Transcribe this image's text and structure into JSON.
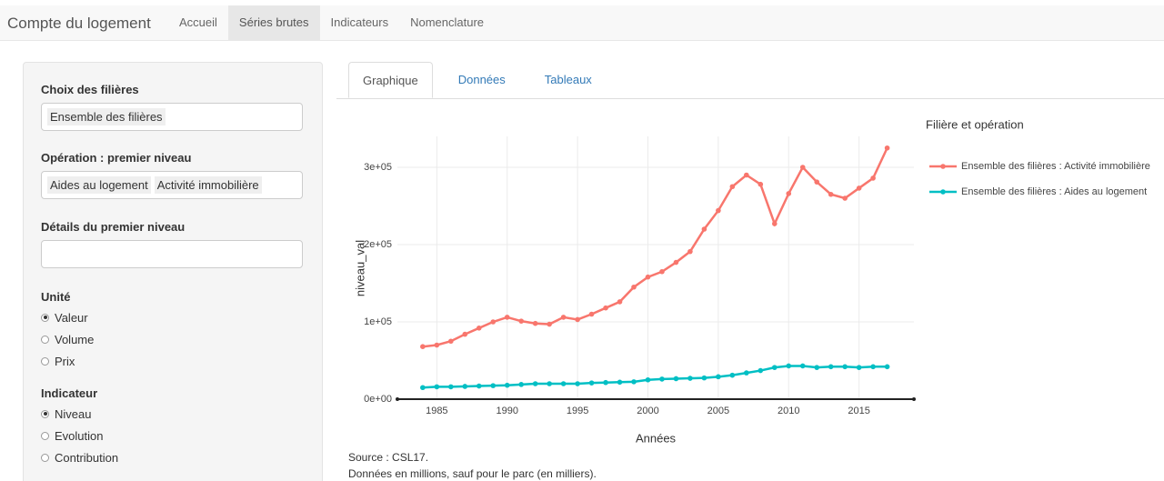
{
  "nav": {
    "brand": "Compte du logement",
    "items": [
      "Accueil",
      "Séries brutes",
      "Indicateurs",
      "Nomenclature"
    ],
    "active": 1
  },
  "sidebar": {
    "filieres": {
      "label": "Choix des filières",
      "selected": [
        "Ensemble des filières"
      ]
    },
    "operation": {
      "label": "Opération : premier niveau",
      "selected": [
        "Aides au logement",
        "Activité immobilière"
      ]
    },
    "details": {
      "label": "Détails du premier niveau"
    },
    "unite": {
      "label": "Unité",
      "options": [
        "Valeur",
        "Volume",
        "Prix"
      ],
      "checked": 0
    },
    "indicateur": {
      "label": "Indicateur",
      "options": [
        "Niveau",
        "Evolution",
        "Contribution"
      ],
      "checked": 0
    }
  },
  "tabs": {
    "items": [
      "Graphique",
      "Données",
      "Tableaux"
    ],
    "active": 0
  },
  "chart_data": {
    "type": "line",
    "x": [
      1984,
      1985,
      1986,
      1987,
      1988,
      1989,
      1990,
      1991,
      1992,
      1993,
      1994,
      1995,
      1996,
      1997,
      1998,
      1999,
      2000,
      2001,
      2002,
      2003,
      2004,
      2005,
      2006,
      2007,
      2008,
      2009,
      2010,
      2011,
      2012,
      2013,
      2014,
      2015,
      2016,
      2017
    ],
    "series": [
      {
        "name": "Ensemble des filières : Activité immobilière",
        "color": "#f8766d",
        "values": [
          68000,
          70000,
          75000,
          84000,
          92000,
          100000,
          106000,
          101000,
          98000,
          97000,
          106000,
          103000,
          110000,
          118000,
          126000,
          145000,
          158000,
          165000,
          177000,
          191000,
          220000,
          244000,
          275000,
          290000,
          278000,
          227000,
          266000,
          300000,
          281000,
          265000,
          260000,
          273000,
          286000,
          325000
        ]
      },
      {
        "name": "Ensemble des filières : Aides au logement",
        "color": "#00bfc4",
        "values": [
          15000,
          16000,
          16000,
          16500,
          17000,
          17500,
          18000,
          19000,
          20000,
          20000,
          20000,
          20000,
          21000,
          21500,
          22000,
          22500,
          25000,
          26000,
          26500,
          27000,
          27500,
          29000,
          31000,
          34000,
          37000,
          41000,
          43000,
          43000,
          41000,
          42000,
          42000,
          41000,
          42000,
          42000
        ]
      }
    ],
    "xlim": [
      1982.2,
      2018.9
    ],
    "ylim": [
      0,
      340000
    ],
    "xticks": [
      1985,
      1990,
      1995,
      2000,
      2005,
      2010,
      2015
    ],
    "yticks": [
      {
        "value": 0,
        "label": "0e+00"
      },
      {
        "value": 100000,
        "label": "1e+05"
      },
      {
        "value": 200000,
        "label": "2e+05"
      },
      {
        "value": 300000,
        "label": "3e+05"
      }
    ],
    "x_label": "Années",
    "y_label": "niveau_val",
    "legend_title": "Filière et opération",
    "grid": true
  },
  "notes": [
    "Source : CSL17.",
    "Données en millions, sauf pour le parc (en milliers)."
  ]
}
